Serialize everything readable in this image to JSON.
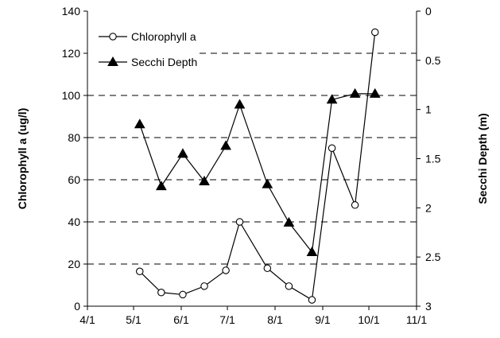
{
  "chart_data": {
    "type": "line",
    "x_ticks": [
      "4/1",
      "5/1",
      "6/1",
      "7/1",
      "8/1",
      "9/1",
      "10/1",
      "11/1"
    ],
    "xlim": [
      "4/1",
      "11/1"
    ],
    "ylabel": "Chlorophyll a (ug/l)",
    "ylim": [
      0,
      140
    ],
    "y_ticks": [
      "0",
      "20",
      "40",
      "60",
      "80",
      "100",
      "120",
      "140"
    ],
    "y2label": "Secchi Depth (m)",
    "y2lim": [
      0,
      3
    ],
    "y2_inverted": true,
    "y2_ticks": [
      "0",
      "0.5",
      "1",
      "1.5",
      "2",
      "2.5",
      "3"
    ],
    "grid": "horizontal dashed",
    "legend_position": "top-left",
    "series": [
      {
        "name": "Chlorophyll a",
        "axis": "left",
        "marker": "open-circle",
        "color": "#000000",
        "points": [
          {
            "x": "5/5",
            "y": 16.5
          },
          {
            "x": "5/19",
            "y": 6.5
          },
          {
            "x": "6/2",
            "y": 5.5
          },
          {
            "x": "6/16",
            "y": 9.5
          },
          {
            "x": "6/30",
            "y": 17
          },
          {
            "x": "7/9",
            "y": 40
          },
          {
            "x": "7/27",
            "y": 18
          },
          {
            "x": "8/10",
            "y": 9.5
          },
          {
            "x": "8/25",
            "y": 3
          },
          {
            "x": "9/7",
            "y": 75
          },
          {
            "x": "9/22",
            "y": 48
          },
          {
            "x": "10/5",
            "y": 130
          }
        ]
      },
      {
        "name": "Secchi Depth",
        "axis": "right",
        "marker": "filled-triangle",
        "color": "#000000",
        "points": [
          {
            "x": "5/5",
            "y": 1.15
          },
          {
            "x": "5/19",
            "y": 1.78
          },
          {
            "x": "6/2",
            "y": 1.45
          },
          {
            "x": "6/16",
            "y": 1.73
          },
          {
            "x": "6/30",
            "y": 1.37
          },
          {
            "x": "7/9",
            "y": 0.95
          },
          {
            "x": "7/27",
            "y": 1.76
          },
          {
            "x": "8/10",
            "y": 2.15
          },
          {
            "x": "8/25",
            "y": 2.45
          },
          {
            "x": "9/7",
            "y": 0.9
          },
          {
            "x": "9/22",
            "y": 0.84
          },
          {
            "x": "10/5",
            "y": 0.84
          }
        ]
      }
    ]
  }
}
